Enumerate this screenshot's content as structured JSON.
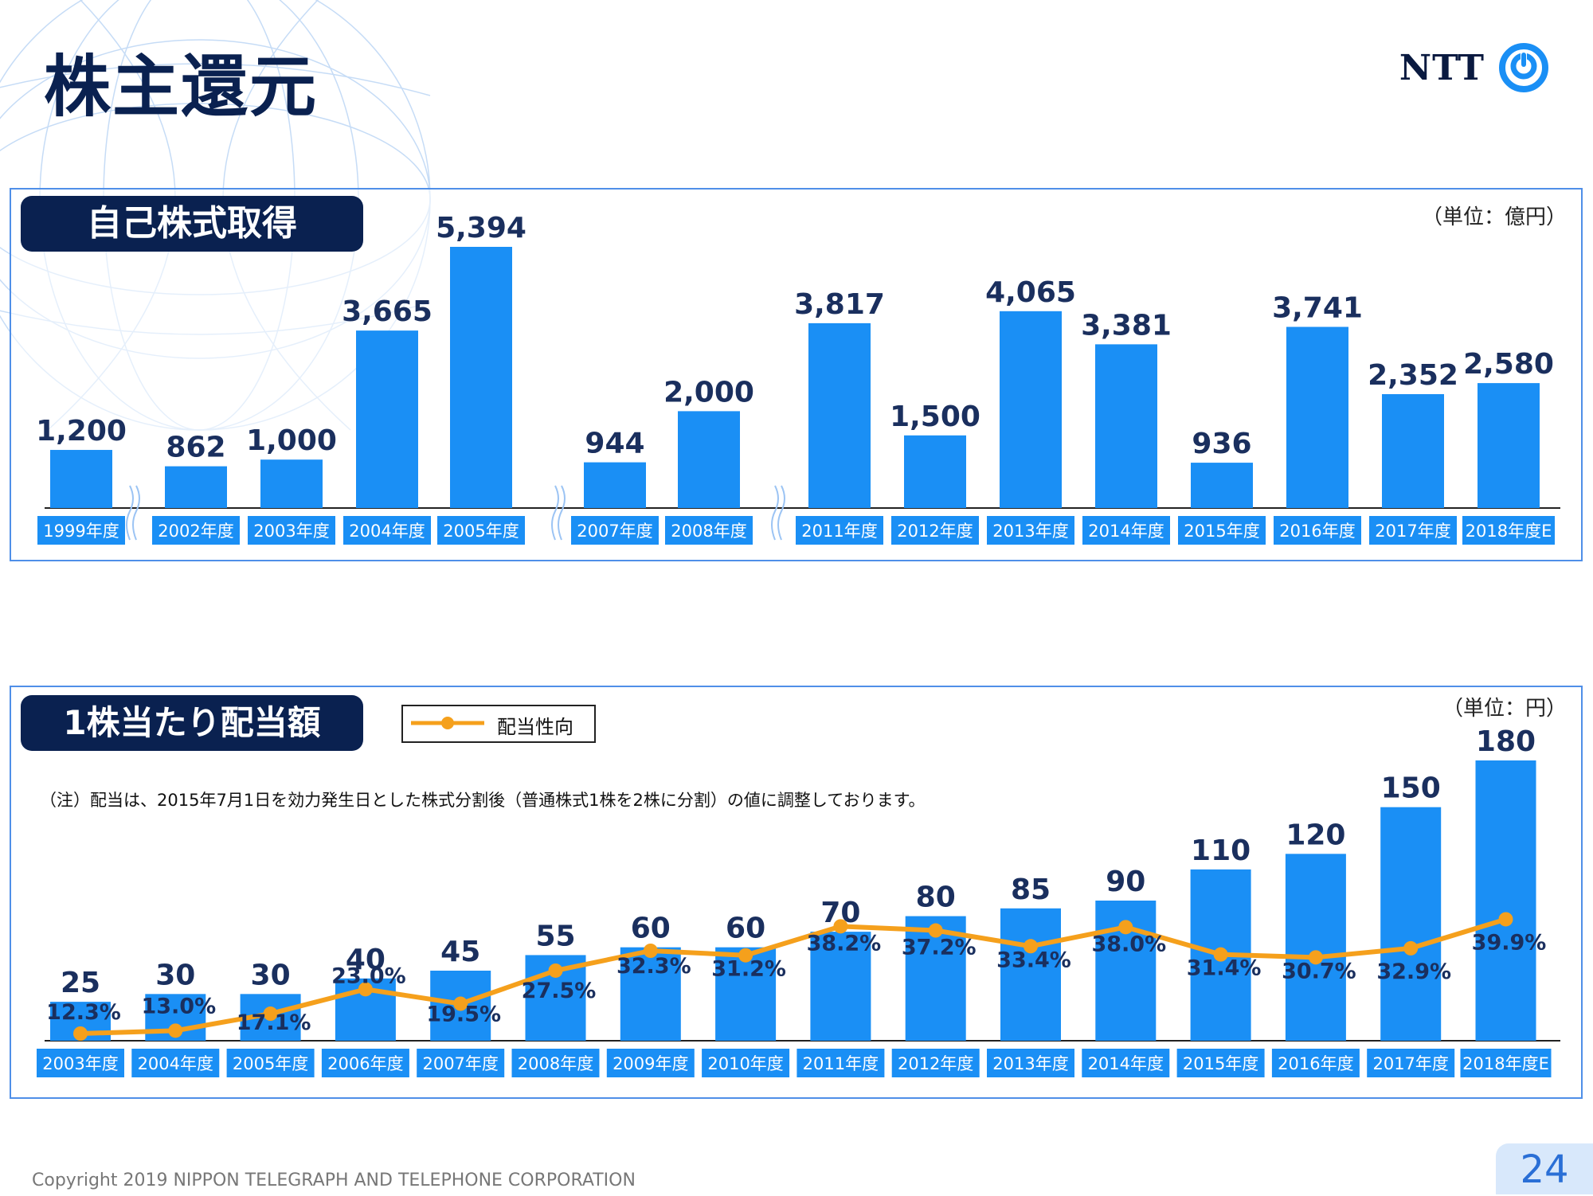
{
  "title": "株主還元",
  "logo": {
    "text": "NTT",
    "icon": "ntt-ring-logo-icon"
  },
  "colors": {
    "bar": "#1a8ff5",
    "line": "#f5a01c",
    "dark": "#0a2150",
    "label": "#1a2f5e"
  },
  "chart_data": [
    {
      "type": "bar",
      "title": "自己株式取得",
      "unit": "（単位：億円）",
      "categories": [
        "1999年度",
        "2002年度",
        "2003年度",
        "2004年度",
        "2005年度",
        "2007年度",
        "2008年度",
        "2011年度",
        "2012年度",
        "2013年度",
        "2014年度",
        "2015年度",
        "2016年度",
        "2017年度",
        "2018年度E"
      ],
      "values": [
        1200,
        862,
        1000,
        3665,
        5394,
        944,
        2000,
        3817,
        1500,
        4065,
        3381,
        936,
        3741,
        2352,
        2580
      ],
      "value_labels": [
        "1,200",
        "862",
        "1,000",
        "3,665",
        "5,394",
        "944",
        "2,000",
        "3,817",
        "1,500",
        "4,065",
        "3,381",
        "936",
        "3,741",
        "2,352",
        "2,580"
      ],
      "axis_breaks_after": [
        "1999年度",
        "2005年度",
        "2008年度"
      ]
    },
    {
      "type": "bar+line",
      "title": "1株当たり配当額",
      "unit": "（単位：円）",
      "note": "（注）配当は、2015年7月1日を効力発生日とした株式分割後（普通株式1株を2株に分割）の値に調整しております。",
      "categories": [
        "2003年度",
        "2004年度",
        "2005年度",
        "2006年度",
        "2007年度",
        "2008年度",
        "2009年度",
        "2010年度",
        "2011年度",
        "2012年度",
        "2013年度",
        "2014年度",
        "2015年度",
        "2016年度",
        "2017年度",
        "2018年度E"
      ],
      "series": [
        {
          "type": "bar",
          "values": [
            25,
            30,
            30,
            40,
            45,
            55,
            60,
            60,
            70,
            80,
            85,
            90,
            110,
            120,
            150,
            180
          ]
        },
        {
          "type": "line",
          "name": "配当性向",
          "values": [
            12.3,
            13.0,
            17.1,
            23.0,
            19.5,
            27.5,
            32.3,
            31.2,
            38.2,
            37.2,
            33.4,
            38.0,
            31.4,
            30.7,
            32.9,
            39.9
          ],
          "value_labels": [
            "12.3%",
            "13.0%",
            "17.1%",
            "23.0%",
            "19.5%",
            "27.5%",
            "32.3%",
            "31.2%",
            "38.2%",
            "37.2%",
            "33.4%",
            "38.0%",
            "31.4%",
            "30.7%",
            "32.9%",
            "39.9%"
          ]
        }
      ]
    }
  ],
  "footer": {
    "copyright": "Copyright 2019 NIPPON TELEGRAPH AND TELEPHONE CORPORATION",
    "page": "24"
  }
}
